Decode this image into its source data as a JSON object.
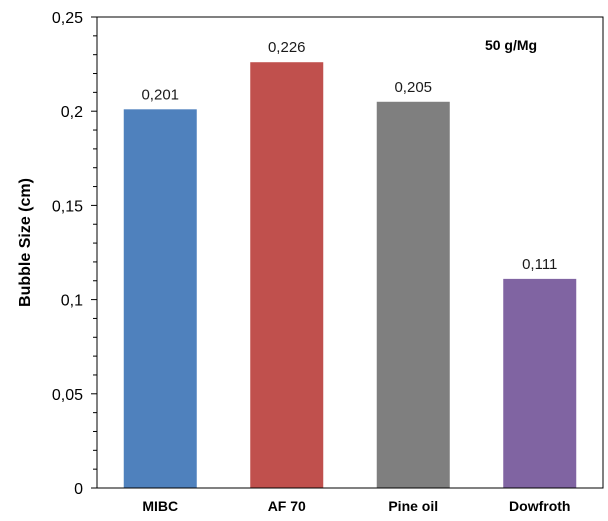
{
  "chart_data": {
    "type": "bar",
    "categories": [
      "MIBC",
      "AF 70",
      "Pine oil",
      "Dowfroth"
    ],
    "values": [
      0.201,
      0.226,
      0.205,
      0.111
    ],
    "data_labels": [
      "0,201",
      "0,226",
      "0,205",
      "0,111"
    ],
    "colors": [
      "#4F81BD",
      "#C0504D",
      "#7F7F7F",
      "#8064A2"
    ],
    "title": "",
    "xlabel": "",
    "ylabel": "Bubble Size (cm)",
    "ylim": [
      0,
      0.25
    ],
    "yticks": [
      0,
      0.05,
      0.1,
      0.15,
      0.2,
      0.25
    ],
    "ytick_labels": [
      "0",
      "0,05",
      "0,1",
      "0,15",
      "0,2",
      "0,25"
    ],
    "annotation": "50 g/Mg",
    "grid": false,
    "legend": "none"
  }
}
